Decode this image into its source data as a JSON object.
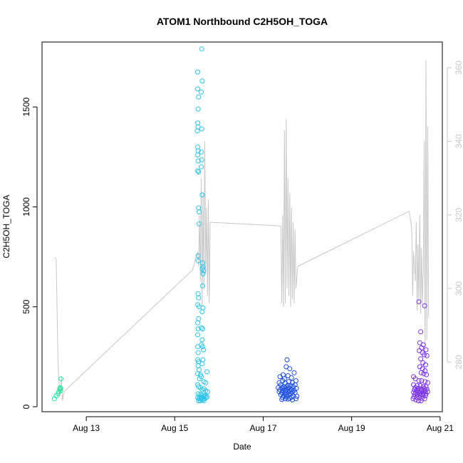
{
  "chart_data": {
    "type": "scatter",
    "title": "ATOM1 Northbound C2H5OH_TOGA",
    "xlabel": "Date",
    "ylabel": "C2H5OH_TOGA",
    "x_ticks": [
      "Aug 13",
      "Aug 15",
      "Aug 17",
      "Aug 19",
      "Aug 21"
    ],
    "y_ticks": [
      "0",
      "500",
      "1000",
      "1500"
    ],
    "y2_ticks": [
      "280",
      "300",
      "320",
      "340",
      "360"
    ],
    "xlim_days": [
      12.0,
      21.05
    ],
    "ylim": [
      -25,
      1825
    ],
    "y2lim": [
      266.5,
      367
    ],
    "grid": false,
    "legend": "none",
    "colors": {
      "line": "#c8c8c8",
      "right_axis": "#c8c8c8",
      "axis": "#000000"
    },
    "series": [
      {
        "color": "#26e3a0",
        "points": [
          [
            12.28,
            40
          ],
          [
            12.32,
            55
          ],
          [
            12.36,
            65
          ],
          [
            12.38,
            75
          ],
          [
            12.4,
            88
          ],
          [
            12.41,
            95
          ],
          [
            12.42,
            80
          ],
          [
            12.43,
            140
          ],
          [
            12.42,
            92
          ]
        ]
      },
      {
        "color": "#2cc3ec",
        "points": [
          [
            15.52,
            1675
          ],
          [
            15.52,
            1590
          ],
          [
            15.54,
            1550
          ],
          [
            15.53,
            1490
          ],
          [
            15.52,
            1420
          ],
          [
            15.53,
            1400
          ],
          [
            15.51,
            1380
          ],
          [
            15.52,
            1300
          ],
          [
            15.53,
            1280
          ],
          [
            15.52,
            1260
          ],
          [
            15.53,
            1230
          ],
          [
            15.52,
            1180
          ],
          [
            15.54,
            1175
          ],
          [
            15.61,
            1790
          ],
          [
            15.62,
            1630
          ],
          [
            15.6,
            1575
          ],
          [
            15.61,
            1390
          ],
          [
            15.6,
            1275
          ],
          [
            15.61,
            1235
          ],
          [
            15.6,
            1200
          ],
          [
            15.62,
            1060
          ],
          [
            15.54,
            995
          ],
          [
            15.55,
            975
          ],
          [
            15.55,
            915
          ],
          [
            15.53,
            755
          ],
          [
            15.53,
            730
          ],
          [
            15.63,
            720
          ],
          [
            15.64,
            700
          ],
          [
            15.62,
            690
          ],
          [
            15.65,
            680
          ],
          [
            15.64,
            665
          ],
          [
            15.63,
            605
          ],
          [
            15.53,
            565
          ],
          [
            15.54,
            545
          ],
          [
            15.52,
            510
          ],
          [
            15.55,
            500
          ],
          [
            15.64,
            495
          ],
          [
            15.62,
            475
          ],
          [
            15.54,
            440
          ],
          [
            15.52,
            420
          ],
          [
            15.53,
            390
          ],
          [
            15.6,
            395
          ],
          [
            15.63,
            390
          ],
          [
            15.52,
            360
          ],
          [
            15.62,
            335
          ],
          [
            15.6,
            310
          ],
          [
            15.63,
            300
          ],
          [
            15.52,
            300
          ],
          [
            15.65,
            285
          ],
          [
            15.53,
            270
          ],
          [
            15.52,
            235
          ],
          [
            15.54,
            225
          ],
          [
            15.64,
            235
          ],
          [
            15.53,
            205
          ],
          [
            15.62,
            215
          ],
          [
            15.55,
            185
          ],
          [
            15.52,
            165
          ],
          [
            15.58,
            160
          ],
          [
            15.6,
            150
          ],
          [
            15.56,
            140
          ],
          [
            15.66,
            125
          ],
          [
            15.73,
            175
          ],
          [
            15.7,
            120
          ],
          [
            15.52,
            110
          ],
          [
            15.54,
            100
          ],
          [
            15.58,
            95
          ],
          [
            15.62,
            85
          ],
          [
            15.66,
            90
          ],
          [
            15.7,
            80
          ],
          [
            15.74,
            75
          ],
          [
            15.53,
            65
          ],
          [
            15.57,
            60
          ],
          [
            15.61,
            60
          ],
          [
            15.65,
            55
          ],
          [
            15.69,
            55
          ],
          [
            15.73,
            50
          ],
          [
            15.52,
            45
          ],
          [
            15.55,
            40
          ],
          [
            15.59,
            40
          ],
          [
            15.63,
            35
          ],
          [
            15.67,
            40
          ],
          [
            15.71,
            45
          ],
          [
            15.54,
            30
          ],
          [
            15.58,
            30
          ],
          [
            15.62,
            35
          ],
          [
            15.66,
            30
          ],
          [
            15.56,
            50
          ],
          [
            15.6,
            45
          ],
          [
            15.64,
            48
          ],
          [
            15.68,
            52
          ]
        ]
      },
      {
        "color": "#1a4de0",
        "points": [
          [
            17.54,
            235
          ],
          [
            17.52,
            200
          ],
          [
            17.6,
            190
          ],
          [
            17.45,
            160
          ],
          [
            17.7,
            170
          ],
          [
            17.56,
            155
          ],
          [
            17.38,
            150
          ],
          [
            17.64,
            145
          ],
          [
            17.48,
            140
          ],
          [
            17.74,
            130
          ],
          [
            17.44,
            130
          ],
          [
            17.58,
            125
          ],
          [
            17.36,
            120
          ],
          [
            17.66,
            120
          ],
          [
            17.5,
            118
          ],
          [
            17.72,
            110
          ],
          [
            17.4,
            110
          ],
          [
            17.56,
            108
          ],
          [
            17.62,
            105
          ],
          [
            17.46,
            100
          ],
          [
            17.52,
            100
          ],
          [
            17.68,
            100
          ],
          [
            17.34,
            95
          ],
          [
            17.42,
            95
          ],
          [
            17.58,
            95
          ],
          [
            17.75,
            92
          ],
          [
            17.48,
            90
          ],
          [
            17.64,
            88
          ],
          [
            17.38,
            85
          ],
          [
            17.54,
            85
          ],
          [
            17.7,
            82
          ],
          [
            17.44,
            80
          ],
          [
            17.6,
            80
          ],
          [
            17.5,
            78
          ],
          [
            17.66,
            75
          ],
          [
            17.36,
            75
          ],
          [
            17.56,
            72
          ],
          [
            17.42,
            70
          ],
          [
            17.72,
            70
          ],
          [
            17.48,
            68
          ],
          [
            17.62,
            65
          ],
          [
            17.52,
            62
          ],
          [
            17.4,
            60
          ],
          [
            17.58,
            58
          ],
          [
            17.68,
            55
          ],
          [
            17.46,
            55
          ],
          [
            17.76,
            52
          ],
          [
            17.54,
            50
          ],
          [
            17.64,
            48
          ],
          [
            17.44,
            45
          ],
          [
            17.6,
            42
          ],
          [
            17.5,
            40
          ],
          [
            17.74,
            40
          ],
          [
            17.56,
            38
          ],
          [
            17.42,
            36
          ],
          [
            17.66,
            34
          ]
        ]
      },
      {
        "color": "#7a32e6",
        "points": [
          [
            20.52,
            525
          ],
          [
            20.65,
            505
          ],
          [
            20.56,
            375
          ],
          [
            20.54,
            320
          ],
          [
            20.62,
            310
          ],
          [
            20.58,
            295
          ],
          [
            20.68,
            285
          ],
          [
            20.53,
            280
          ],
          [
            20.6,
            270
          ],
          [
            20.64,
            260
          ],
          [
            20.7,
            255
          ],
          [
            20.56,
            240
          ],
          [
            20.61,
            220
          ],
          [
            20.67,
            210
          ],
          [
            20.54,
            200
          ],
          [
            20.6,
            190
          ],
          [
            20.66,
            180
          ],
          [
            20.57,
            170
          ],
          [
            20.63,
            165
          ],
          [
            20.69,
            160
          ],
          [
            20.4,
            150
          ],
          [
            20.44,
            140
          ],
          [
            20.52,
            130
          ],
          [
            20.58,
            130
          ],
          [
            20.66,
            125
          ],
          [
            20.72,
            120
          ],
          [
            20.4,
            110
          ],
          [
            20.48,
            105
          ],
          [
            20.55,
            105
          ],
          [
            20.62,
            100
          ],
          [
            20.68,
            100
          ],
          [
            20.44,
            95
          ],
          [
            20.5,
            92
          ],
          [
            20.57,
            90
          ],
          [
            20.64,
            90
          ],
          [
            20.7,
            88
          ],
          [
            20.42,
            85
          ],
          [
            20.47,
            82
          ],
          [
            20.53,
            80
          ],
          [
            20.59,
            80
          ],
          [
            20.66,
            78
          ],
          [
            20.72,
            75
          ],
          [
            20.4,
            72
          ],
          [
            20.45,
            70
          ],
          [
            20.51,
            70
          ],
          [
            20.56,
            68
          ],
          [
            20.62,
            66
          ],
          [
            20.68,
            65
          ],
          [
            20.43,
            62
          ],
          [
            20.49,
            60
          ],
          [
            20.55,
            58
          ],
          [
            20.61,
            56
          ],
          [
            20.67,
            55
          ],
          [
            20.41,
            50
          ],
          [
            20.47,
            48
          ],
          [
            20.53,
            45
          ],
          [
            20.59,
            42
          ],
          [
            20.65,
            40
          ],
          [
            20.39,
            40
          ],
          [
            20.45,
            35
          ],
          [
            20.51,
            30
          ],
          [
            20.57,
            30
          ]
        ]
      }
    ],
    "line_series": {
      "axis": "right",
      "points": [
        [
          12.28,
          308.5
        ],
        [
          12.32,
          308
        ],
        [
          12.36,
          280
        ],
        [
          12.4,
          270.5
        ],
        [
          12.42,
          273
        ],
        [
          12.44,
          276
        ],
        [
          12.46,
          269.5
        ],
        [
          12.5,
          272
        ],
        [
          15.4,
          305
        ],
        [
          15.52,
          310
        ],
        [
          15.54,
          306
        ],
        [
          15.56,
          320
        ],
        [
          15.58,
          302
        ],
        [
          15.6,
          330
        ],
        [
          15.62,
          295
        ],
        [
          15.64,
          326
        ],
        [
          15.66,
          300
        ],
        [
          15.68,
          340
        ],
        [
          15.7,
          304
        ],
        [
          15.72,
          322
        ],
        [
          15.74,
          298
        ],
        [
          15.76,
          324
        ],
        [
          15.78,
          296
        ],
        [
          15.8,
          318
        ],
        [
          17.4,
          317
        ],
        [
          17.42,
          296
        ],
        [
          17.44,
          320
        ],
        [
          17.46,
          295
        ],
        [
          17.48,
          343
        ],
        [
          17.5,
          296
        ],
        [
          17.52,
          346
        ],
        [
          17.54,
          300
        ],
        [
          17.56,
          330
        ],
        [
          17.58,
          298
        ],
        [
          17.6,
          326
        ],
        [
          17.62,
          295
        ],
        [
          17.64,
          322
        ],
        [
          17.66,
          297
        ],
        [
          17.68,
          318
        ],
        [
          17.7,
          296
        ],
        [
          17.72,
          316
        ],
        [
          17.74,
          300
        ],
        [
          17.78,
          306
        ],
        [
          20.3,
          321
        ],
        [
          20.34,
          318
        ],
        [
          20.36,
          315
        ],
        [
          20.38,
          298
        ],
        [
          20.4,
          310
        ],
        [
          20.42,
          306
        ],
        [
          20.44,
          302
        ],
        [
          20.46,
          318
        ],
        [
          20.48,
          294
        ],
        [
          20.5,
          312
        ],
        [
          20.52,
          296
        ],
        [
          20.54,
          320
        ],
        [
          20.56,
          293
        ],
        [
          20.58,
          311
        ],
        [
          20.6,
          296
        ],
        [
          20.62,
          305
        ],
        [
          20.64,
          340
        ],
        [
          20.66,
          282
        ],
        [
          20.68,
          362
        ],
        [
          20.7,
          286
        ],
        [
          20.72,
          344
        ],
        [
          20.74,
          292
        ]
      ]
    }
  }
}
